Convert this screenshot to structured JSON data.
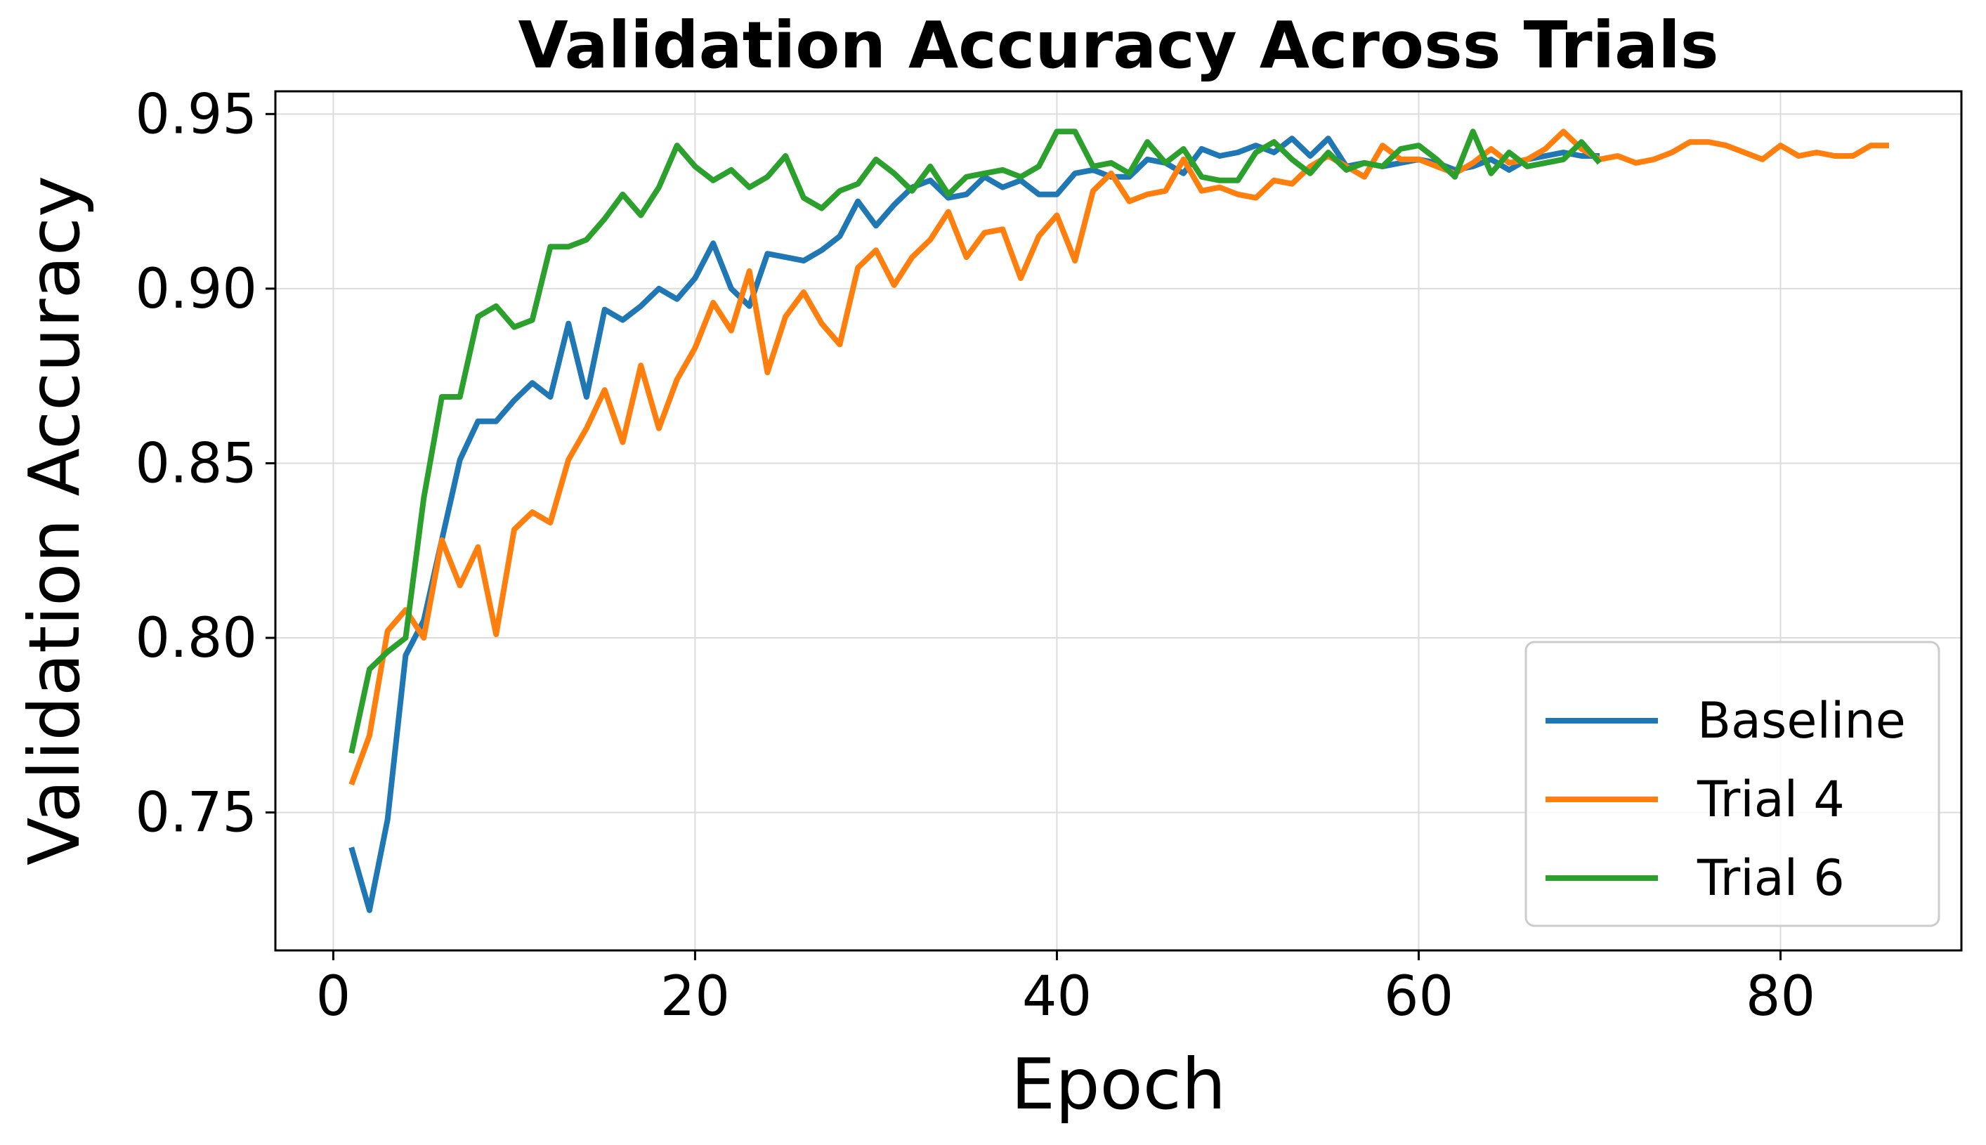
{
  "chart_data": {
    "type": "line",
    "title": "Validation Accuracy Across Trials",
    "xlabel": "Epoch",
    "ylabel": "Validation Accuracy",
    "xlim": [
      -3.2,
      90
    ],
    "ylim": [
      0.7105,
      0.9565
    ],
    "xticks": [
      0,
      20,
      40,
      60,
      80
    ],
    "xtick_labels": [
      "0",
      "20",
      "40",
      "60",
      "80"
    ],
    "yticks": [
      0.75,
      0.8,
      0.85,
      0.9,
      0.95
    ],
    "ytick_labels": [
      "0.75",
      "0.80",
      "0.85",
      "0.90",
      "0.95"
    ],
    "grid": true,
    "legend_position": "lower-right",
    "series": [
      {
        "name": "Baseline",
        "color": "#1f77b4",
        "x": [
          1,
          2,
          3,
          4,
          5,
          6,
          7,
          8,
          9,
          10,
          11,
          12,
          13,
          14,
          15,
          16,
          17,
          18,
          19,
          20,
          21,
          22,
          23,
          24,
          25,
          26,
          27,
          28,
          29,
          30,
          31,
          32,
          33,
          34,
          35,
          36,
          37,
          38,
          39,
          40,
          41,
          42,
          43,
          44,
          45,
          46,
          47,
          48,
          49,
          50,
          51,
          52,
          53,
          54,
          55,
          56,
          57,
          58,
          59,
          60,
          61,
          62,
          63,
          64,
          65,
          66,
          67,
          68,
          69,
          70
        ],
        "y": [
          0.74,
          0.722,
          0.748,
          0.795,
          0.805,
          0.828,
          0.851,
          0.862,
          0.862,
          0.868,
          0.873,
          0.869,
          0.89,
          0.869,
          0.894,
          0.891,
          0.895,
          0.9,
          0.897,
          0.903,
          0.913,
          0.9,
          0.895,
          0.91,
          0.909,
          0.908,
          0.911,
          0.915,
          0.925,
          0.918,
          0.924,
          0.929,
          0.931,
          0.926,
          0.927,
          0.932,
          0.929,
          0.931,
          0.927,
          0.927,
          0.933,
          0.934,
          0.932,
          0.932,
          0.937,
          0.936,
          0.933,
          0.94,
          0.938,
          0.939,
          0.941,
          0.939,
          0.943,
          0.938,
          0.943,
          0.935,
          0.936,
          0.935,
          0.936,
          0.937,
          0.936,
          0.934,
          0.935,
          0.937,
          0.934,
          0.937,
          0.938,
          0.939,
          0.938,
          0.938
        ]
      },
      {
        "name": "Trial 4",
        "color": "#ff7f0e",
        "x": [
          1,
          2,
          3,
          4,
          5,
          6,
          7,
          8,
          9,
          10,
          11,
          12,
          13,
          14,
          15,
          16,
          17,
          18,
          19,
          20,
          21,
          22,
          23,
          24,
          25,
          26,
          27,
          28,
          29,
          30,
          31,
          32,
          33,
          34,
          35,
          36,
          37,
          38,
          39,
          40,
          41,
          42,
          43,
          44,
          45,
          46,
          47,
          48,
          49,
          50,
          51,
          52,
          53,
          54,
          55,
          56,
          57,
          58,
          59,
          60,
          61,
          62,
          63,
          64,
          65,
          66,
          67,
          68,
          69,
          70,
          71,
          72,
          73,
          74,
          75,
          76,
          77,
          78,
          79,
          80,
          81,
          82,
          83,
          84,
          85,
          86
        ],
        "y": [
          0.758,
          0.772,
          0.802,
          0.808,
          0.8,
          0.828,
          0.815,
          0.826,
          0.801,
          0.831,
          0.836,
          0.833,
          0.851,
          0.86,
          0.871,
          0.856,
          0.878,
          0.86,
          0.874,
          0.883,
          0.896,
          0.888,
          0.905,
          0.876,
          0.892,
          0.899,
          0.89,
          0.884,
          0.906,
          0.911,
          0.901,
          0.909,
          0.914,
          0.922,
          0.909,
          0.916,
          0.917,
          0.903,
          0.915,
          0.921,
          0.908,
          0.928,
          0.933,
          0.925,
          0.927,
          0.928,
          0.937,
          0.928,
          0.929,
          0.927,
          0.926,
          0.931,
          0.93,
          0.935,
          0.938,
          0.935,
          0.932,
          0.941,
          0.937,
          0.937,
          0.935,
          0.933,
          0.936,
          0.94,
          0.936,
          0.937,
          0.94,
          0.945,
          0.94,
          0.937,
          0.938,
          0.936,
          0.937,
          0.939,
          0.942,
          0.942,
          0.941,
          0.939,
          0.937,
          0.941,
          0.938,
          0.939,
          0.938,
          0.938,
          0.941,
          0.941
        ]
      },
      {
        "name": "Trial 6",
        "color": "#2ca02c",
        "x": [
          1,
          2,
          3,
          4,
          5,
          6,
          7,
          8,
          9,
          10,
          11,
          12,
          13,
          14,
          15,
          16,
          17,
          18,
          19,
          20,
          21,
          22,
          23,
          24,
          25,
          26,
          27,
          28,
          29,
          30,
          31,
          32,
          33,
          34,
          35,
          36,
          37,
          38,
          39,
          40,
          41,
          42,
          43,
          44,
          45,
          46,
          47,
          48,
          49,
          50,
          51,
          52,
          53,
          54,
          55,
          56,
          57,
          58,
          59,
          60,
          61,
          62,
          63,
          64,
          65,
          66,
          67,
          68,
          69,
          70
        ],
        "y": [
          0.767,
          0.791,
          0.796,
          0.8,
          0.84,
          0.869,
          0.869,
          0.892,
          0.895,
          0.889,
          0.891,
          0.912,
          0.912,
          0.914,
          0.92,
          0.927,
          0.921,
          0.929,
          0.941,
          0.935,
          0.931,
          0.934,
          0.929,
          0.932,
          0.938,
          0.926,
          0.923,
          0.928,
          0.93,
          0.937,
          0.933,
          0.928,
          0.935,
          0.927,
          0.932,
          0.933,
          0.934,
          0.932,
          0.935,
          0.945,
          0.945,
          0.935,
          0.936,
          0.933,
          0.942,
          0.936,
          0.94,
          0.932,
          0.931,
          0.931,
          0.939,
          0.942,
          0.937,
          0.933,
          0.939,
          0.934,
          0.936,
          0.935,
          0.94,
          0.941,
          0.937,
          0.932,
          0.945,
          0.933,
          0.939,
          0.935,
          0.936,
          0.937,
          0.942,
          0.936
        ]
      }
    ]
  }
}
